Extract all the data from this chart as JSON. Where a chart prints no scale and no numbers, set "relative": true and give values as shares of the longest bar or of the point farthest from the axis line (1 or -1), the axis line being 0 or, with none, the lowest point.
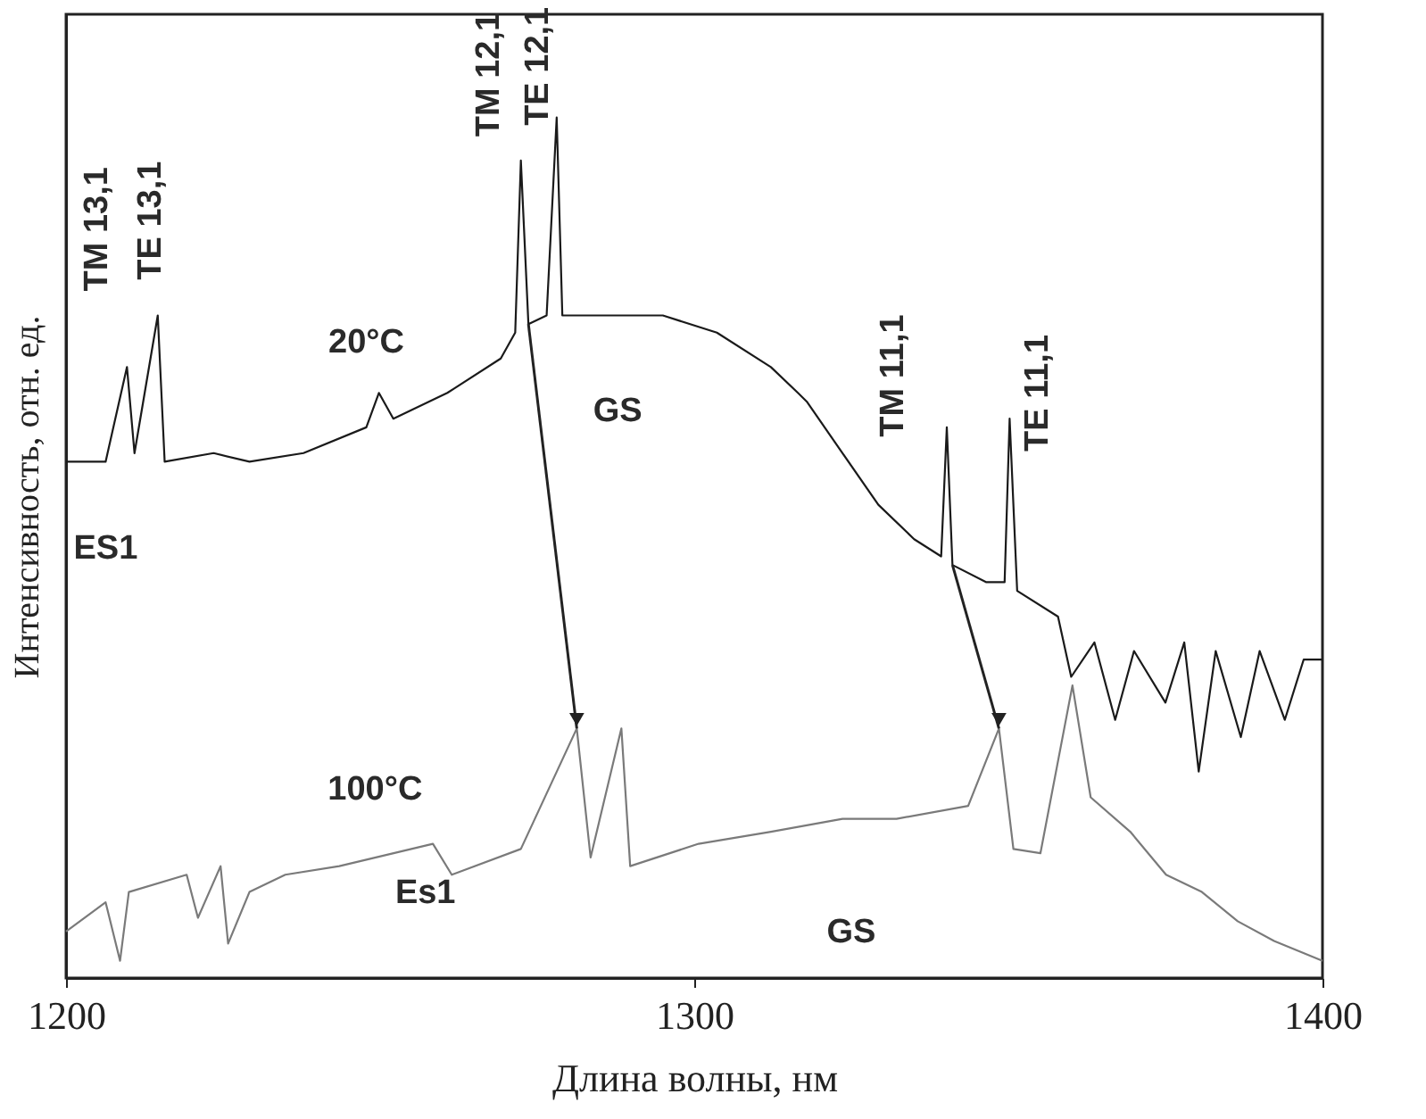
{
  "chart_data": {
    "type": "line",
    "relative": true,
    "xlabel": "Длина волны, нм",
    "ylabel": "Интенсивность, отн. ед.",
    "xlim": [
      1200,
      1400
    ],
    "xticks": [
      1200,
      1300,
      1400
    ],
    "line_style": "solid",
    "marker": "none",
    "series": [
      {
        "color": "#1a1a1a",
        "x": [
          1200,
          1206.3,
          1209.7,
          1210.9,
          1214.6,
          1215.7,
          1223.5,
          1229.2,
          1237.8,
          1247.8,
          1249.8,
          1252.1,
          1260.7,
          1269.2,
          1271.5,
          1272.4,
          1273.6,
          1276.5,
          1278.1,
          1279,
          1283.5,
          1295,
          1303.6,
          1312.2,
          1316.5,
          1317.9,
          1323.6,
          1329.3,
          1335,
          1339.3,
          1340.2,
          1341.1,
          1346.5,
          1349.4,
          1350.2,
          1351.4,
          1357.9,
          1360,
          1363.7,
          1367,
          1370,
          1375,
          1378,
          1380.3,
          1383,
          1387,
          1390,
          1394,
          1397,
          1400
        ],
        "values": [
          0.6,
          0.6,
          0.71,
          0.61,
          0.77,
          0.6,
          0.61,
          0.6,
          0.61,
          0.64,
          0.68,
          0.65,
          0.68,
          0.72,
          0.75,
          0.95,
          0.76,
          0.77,
          1.0,
          0.77,
          0.77,
          0.77,
          0.75,
          0.71,
          0.68,
          0.67,
          0.61,
          0.55,
          0.51,
          0.49,
          0.64,
          0.48,
          0.46,
          0.46,
          0.65,
          0.45,
          0.42,
          0.35,
          0.39,
          0.3,
          0.38,
          0.32,
          0.39,
          0.24,
          0.38,
          0.28,
          0.38,
          0.3,
          0.37,
          0.37
        ]
      },
      {
        "color": "#7a7a7a",
        "x": [
          1200,
          1206.3,
          1208.6,
          1210,
          1219.2,
          1221,
          1224.6,
          1225.8,
          1229.2,
          1234.9,
          1243.5,
          1258.4,
          1261.4,
          1272.4,
          1281.3,
          1283.5,
          1288.4,
          1289.8,
          1300.7,
          1312.2,
          1323.6,
          1332.2,
          1343.6,
          1348.5,
          1350.8,
          1355.1,
          1360.2,
          1363.1,
          1369.4,
          1375.1,
          1380.8,
          1386.5,
          1392.3,
          1400
        ],
        "values": [
          0.054,
          0.088,
          0.02,
          0.1,
          0.12,
          0.07,
          0.13,
          0.04,
          0.1,
          0.12,
          0.13,
          0.156,
          0.12,
          0.15,
          0.29,
          0.14,
          0.29,
          0.13,
          0.156,
          0.17,
          0.185,
          0.185,
          0.2,
          0.29,
          0.15,
          0.145,
          0.34,
          0.21,
          0.17,
          0.12,
          0.1,
          0.066,
          0.043,
          0.02
        ]
      }
    ],
    "annotations": [
      "TM 13,1",
      "TE 13,1",
      "TM 12,1",
      "TE 12,1",
      "TM 11,1",
      "TE 11,1",
      "20°C",
      "GS",
      "ES1",
      "100°C",
      "Es1",
      "GS"
    ]
  }
}
